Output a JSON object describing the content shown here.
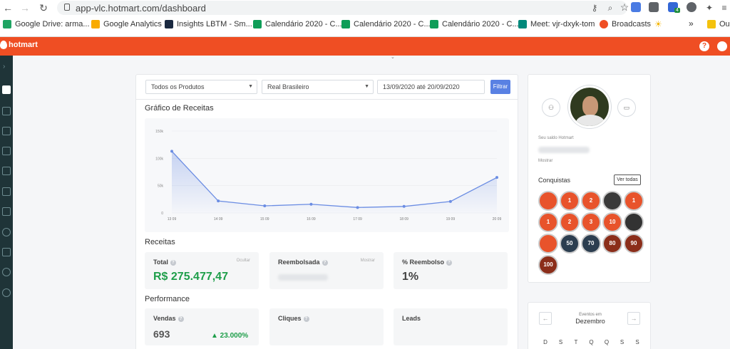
{
  "browser": {
    "url": "app-vlc.hotmart.com/dashboard",
    "bookmarks": [
      {
        "label": "Google Drive: arma...",
        "color": "#1fa463"
      },
      {
        "label": "Google Analytics",
        "color": "#f9ab00"
      },
      {
        "label": "Insights LBTM - Sm...",
        "color": "#1a2940"
      },
      {
        "label": "Calendário 2020 - C...",
        "color": "#0f9d58"
      },
      {
        "label": "Calendário 2020 - C...",
        "color": "#0f9d58"
      },
      {
        "label": "Calendário 2020 - C...",
        "color": "#0f9d58"
      },
      {
        "label": "Meet: vjr-dxyk-tom",
        "color": "#00897b"
      },
      {
        "label": "Broadcasts",
        "color": "#ef4e23"
      },
      {
        "label": "Ou",
        "color": "#f4c20d"
      }
    ],
    "more_bookmarks": "»",
    "extension_badge": "4"
  },
  "app": {
    "brand": "hotmart",
    "help_icon": "?",
    "account_icon": "user-circle-icon",
    "accent": "#ef4e23",
    "sidebar_color": "#1f3438"
  },
  "filters": {
    "product": "Todos os Produtos",
    "currency": "Real Brasileiro",
    "date_range": "13/09/2020 até 20/09/2020",
    "filter_button": "Filtrar"
  },
  "chart_title": "Gráfico de Receitas",
  "chart_data": {
    "type": "area",
    "categories": [
      "13 09",
      "14 09",
      "15 09",
      "16 09",
      "17 09",
      "18 09",
      "19 09",
      "20 09"
    ],
    "values": [
      113000,
      22000,
      13000,
      16000,
      10000,
      12000,
      21000,
      65000
    ],
    "y_ticks": [
      "150k",
      "100k",
      "50k",
      "0"
    ],
    "ylim": [
      0,
      150000
    ],
    "color": "#6b8de3"
  },
  "receitas": {
    "title": "Receitas",
    "total_label": "Total",
    "total_side": "Ocultar",
    "total_value": "R$ 275.477,47",
    "reembolsada_label": "Reembolsada",
    "reembolsada_side": "Mostrar",
    "reembolso_pct_label": "% Reembolso",
    "reembolso_pct_value": "1%"
  },
  "performance": {
    "title": "Performance",
    "vendas_label": "Vendas",
    "vendas_value": "693",
    "vendas_change": "▲ 23.000%",
    "cliques_label": "Cliques",
    "leads_label": "Leads"
  },
  "profile": {
    "saldo_label": "Seu saldo Hotmart",
    "mostrar": "Mostrar",
    "conquistas": "Conquistas",
    "ver_todas": "Ver todas",
    "badges": [
      {
        "text": "",
        "color": "#e8532b"
      },
      {
        "text": "1",
        "color": "#e8532b"
      },
      {
        "text": "2",
        "color": "#e8532b"
      },
      {
        "text": "",
        "color": "#3a3a3a"
      },
      {
        "text": "1",
        "color": "#e8532b"
      },
      {
        "text": "1",
        "color": "#e8532b"
      },
      {
        "text": "2",
        "color": "#e8532b"
      },
      {
        "text": "3",
        "color": "#e8532b"
      },
      {
        "text": "10",
        "color": "#e8532b"
      },
      {
        "text": "",
        "color": "#333"
      },
      {
        "text": "",
        "color": "#e8532b"
      },
      {
        "text": "50",
        "color": "#2c3e50"
      },
      {
        "text": "70",
        "color": "#2c3e50"
      },
      {
        "text": "80",
        "color": "#8b2e1a"
      },
      {
        "text": "90",
        "color": "#8b2e1a"
      },
      {
        "text": "100",
        "color": "#8b2e1a"
      }
    ]
  },
  "calendar": {
    "eventos_em": "Eventos em",
    "month": "Dezembro",
    "prev": "←",
    "next": "→",
    "weekdays": [
      "D",
      "S",
      "T",
      "Q",
      "Q",
      "S",
      "S"
    ]
  }
}
